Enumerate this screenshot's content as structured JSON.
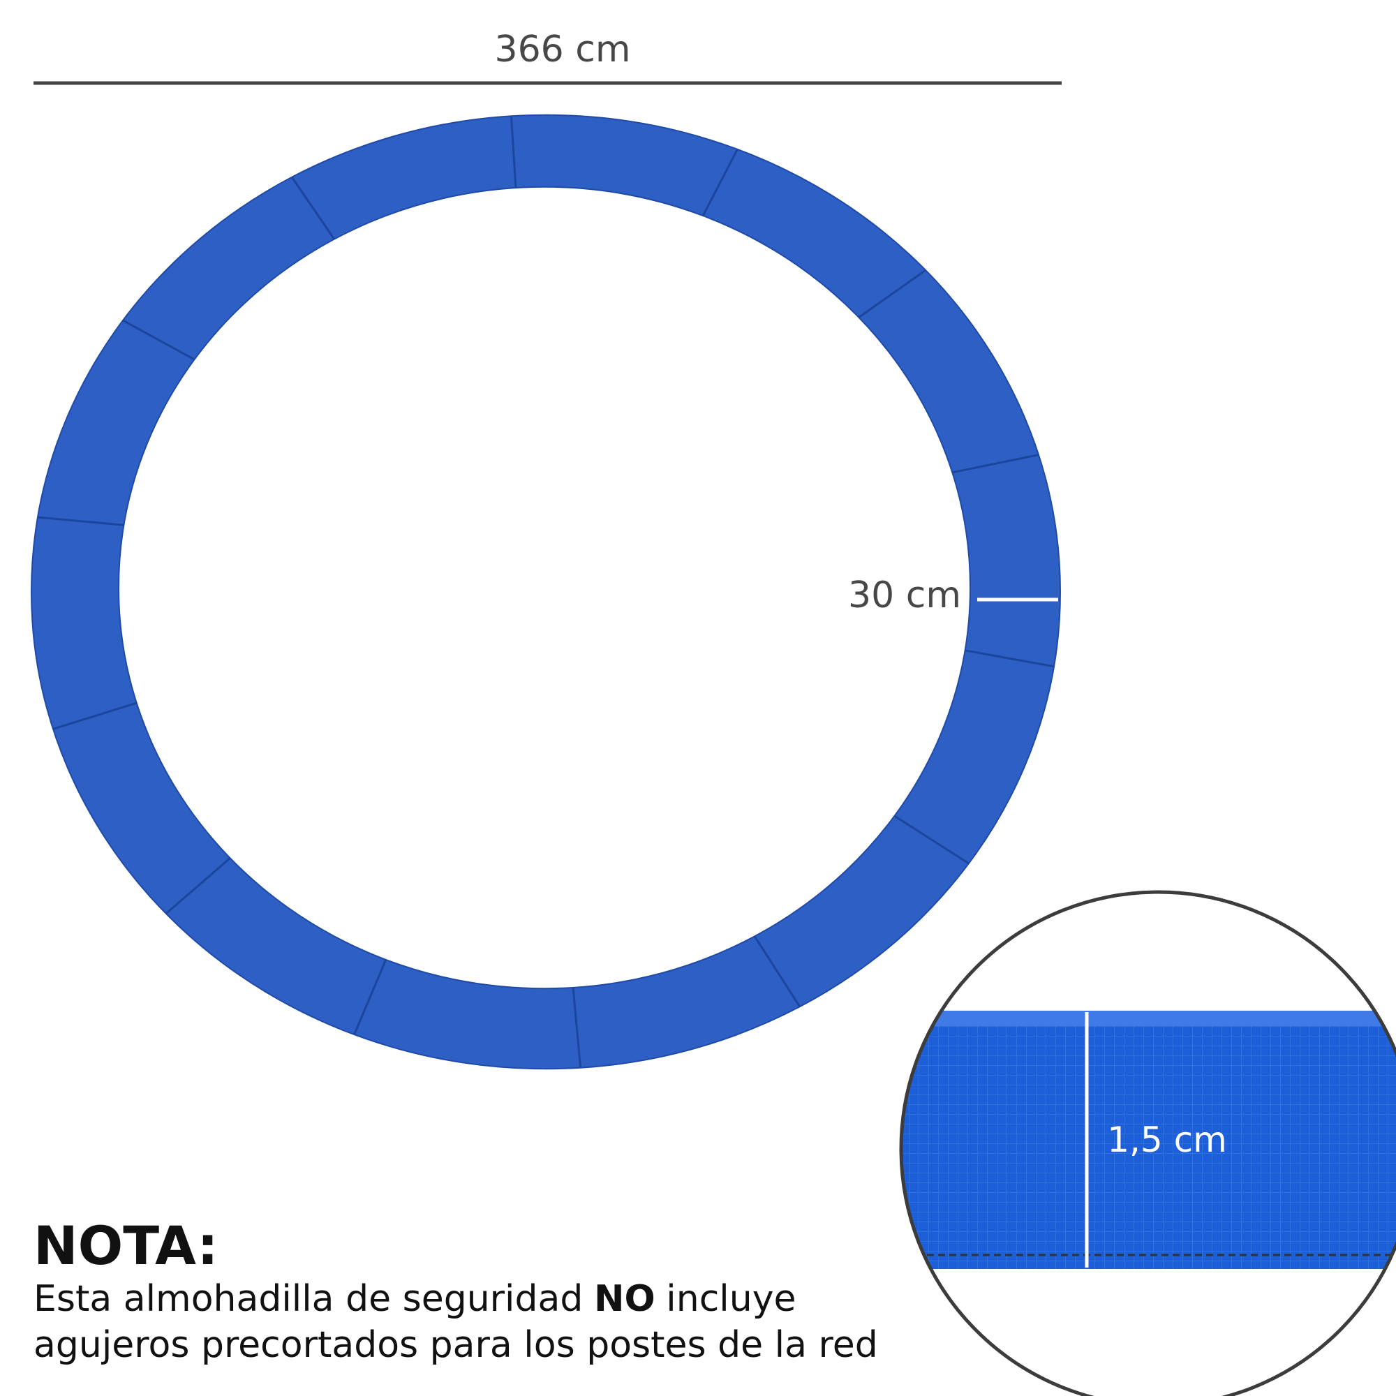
{
  "dimensions": {
    "diameter": "366 cm",
    "width": "30 cm",
    "thickness": "1,5 cm"
  },
  "note": {
    "title": "NOTA:",
    "line1": {
      "before": "Esta almohadilla de seguridad",
      "bold": "NO",
      "after": "incluye"
    },
    "line2": "agujeros precortados para los postes de la red"
  }
}
